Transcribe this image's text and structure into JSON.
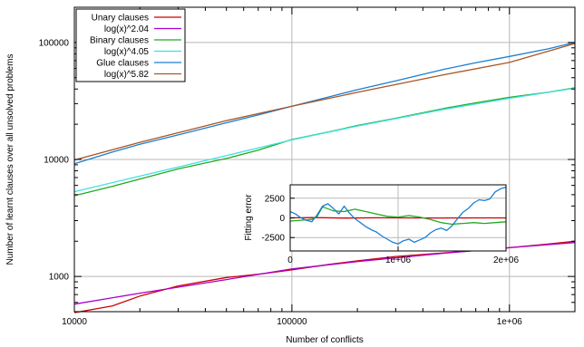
{
  "chart_data": [
    {
      "type": "line",
      "xscale": "log",
      "yscale": "log",
      "xlabel": "Number of conflicts",
      "ylabel": "Number of learnt clauses over all unsolved problems",
      "xlim": [
        10000,
        2000000
      ],
      "ylim": [
        500,
        200000
      ],
      "xticks": [
        {
          "value": 10000,
          "label": "10000"
        },
        {
          "value": 100000,
          "label": "100000"
        },
        {
          "value": 1000000,
          "label": "1e+06"
        }
      ],
      "yticks": [
        {
          "value": 1000,
          "label": "1000"
        },
        {
          "value": 10000,
          "label": "10000"
        },
        {
          "value": 100000,
          "label": "100000"
        }
      ],
      "grid": true,
      "legend_position": "top-left",
      "series": [
        {
          "name": "Unary clauses",
          "color": "#cc0000",
          "x": [
            10000,
            15000,
            20000,
            30000,
            50000,
            75000,
            100000,
            150000,
            200000,
            300000,
            500000,
            700000,
            1000000,
            1500000,
            2000000
          ],
          "y": [
            490,
            560,
            680,
            830,
            980,
            1060,
            1140,
            1270,
            1360,
            1480,
            1590,
            1670,
            1760,
            1890,
            2000
          ]
        },
        {
          "name": "log(x)^2.04",
          "color": "#aa00cc",
          "x": [
            10000,
            20000,
            50000,
            100000,
            200000,
            500000,
            1000000,
            2000000
          ],
          "y": [
            580,
            720,
            940,
            1160,
            1340,
            1580,
            1760,
            1950
          ]
        },
        {
          "name": "Binary clauses",
          "color": "#22aa22",
          "x": [
            10000,
            15000,
            20000,
            30000,
            50000,
            70000,
            100000,
            150000,
            200000,
            300000,
            500000,
            700000,
            1000000,
            1500000,
            2000000
          ],
          "y": [
            4900,
            5900,
            6800,
            8300,
            10200,
            12000,
            14800,
            17300,
            19500,
            22500,
            27300,
            30500,
            34000,
            37500,
            41000
          ]
        },
        {
          "name": "log(x)^4.05",
          "color": "#40e0e0",
          "x": [
            10000,
            20000,
            50000,
            100000,
            200000,
            500000,
            1000000,
            2000000
          ],
          "y": [
            5300,
            7200,
            10800,
            14700,
            19300,
            26800,
            33300,
            40600
          ]
        },
        {
          "name": "Glue clauses",
          "color": "#1a7fd4",
          "x": [
            10000,
            15000,
            20000,
            30000,
            50000,
            70000,
            100000,
            150000,
            200000,
            300000,
            500000,
            700000,
            1000000,
            1500000,
            2000000
          ],
          "y": [
            9200,
            11600,
            13500,
            16200,
            20600,
            24000,
            28500,
            34500,
            39500,
            47000,
            59000,
            67000,
            76000,
            88000,
            100000
          ]
        },
        {
          "name": "log(x)^5.82",
          "color": "#aa5522",
          "x": [
            10000,
            20000,
            50000,
            100000,
            200000,
            500000,
            1000000,
            2000000
          ],
          "y": [
            9900,
            14000,
            21500,
            28500,
            37500,
            53000,
            67500,
            98000
          ]
        }
      ]
    },
    {
      "type": "line",
      "xlabel": "",
      "ylabel": "Fitting error",
      "xlim": [
        0,
        2000000
      ],
      "ylim": [
        -4200,
        4200
      ],
      "xticks": [
        {
          "value": 0,
          "label": "0"
        },
        {
          "value": 1000000,
          "label": "1e+06"
        },
        {
          "value": 2000000,
          "label": "2e+06"
        }
      ],
      "yticks": [
        {
          "value": 2500,
          "label": "2500"
        },
        {
          "value": 0,
          "label": "0"
        },
        {
          "value": -2500,
          "label": "-2500"
        }
      ],
      "grid": true,
      "series": [
        {
          "color": "#cc0000",
          "x": [
            0,
            200000,
            500000,
            800000,
            1100000,
            1400000,
            1700000,
            2000000
          ],
          "y": [
            0,
            50,
            -20,
            10,
            0,
            -10,
            0,
            0
          ]
        },
        {
          "color": "#22aa22",
          "x": [
            0,
            100000,
            200000,
            250000,
            300000,
            400000,
            500000,
            600000,
            700000,
            800000,
            900000,
            1000000,
            1100000,
            1200000,
            1300000,
            1400000,
            1500000,
            1600000,
            1700000,
            1800000,
            1900000,
            2000000
          ],
          "y": [
            -400,
            -300,
            -200,
            200,
            1400,
            900,
            800,
            1100,
            800,
            500,
            200,
            100,
            300,
            100,
            -200,
            -600,
            -800,
            -700,
            -600,
            -700,
            -600,
            -500
          ]
        },
        {
          "color": "#1a7fd4",
          "x": [
            0,
            50000,
            100000,
            150000,
            200000,
            250000,
            300000,
            350000,
            400000,
            450000,
            500000,
            550000,
            600000,
            650000,
            700000,
            750000,
            800000,
            850000,
            900000,
            950000,
            1000000,
            1050000,
            1100000,
            1150000,
            1200000,
            1250000,
            1300000,
            1350000,
            1400000,
            1450000,
            1500000,
            1550000,
            1600000,
            1650000,
            1700000,
            1750000,
            1800000,
            1850000,
            1900000,
            1950000,
            2000000
          ],
          "y": [
            800,
            500,
            0,
            -300,
            -500,
            400,
            1500,
            1800,
            1200,
            500,
            1500,
            600,
            -100,
            -600,
            -1100,
            -1500,
            -1800,
            -2300,
            -2700,
            -3100,
            -3300,
            -2900,
            -2700,
            -3100,
            -2800,
            -2500,
            -1900,
            -1500,
            -1300,
            -1600,
            -1000,
            -100,
            700,
            1200,
            1900,
            2300,
            2200,
            2400,
            3300,
            3700,
            3900
          ]
        }
      ]
    }
  ]
}
